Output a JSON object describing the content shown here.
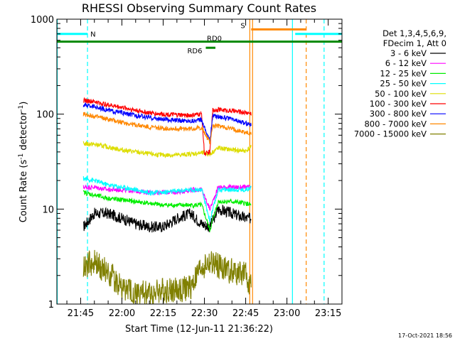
{
  "chart_data": {
    "type": "line",
    "title": "RHESSI Observing Summary Count Rates",
    "xlabel": "Start Time (12-Jun-11 21:36:22)",
    "ylabel": "Count Rate (s",
    "ylabel_sup": "-1",
    "ylabel_tail": " detector",
    "ylabel_sup2": "-1",
    "ylabel_close": ")",
    "y_scale": "log",
    "ylim": [
      1,
      1000
    ],
    "xlim": [
      "21:36:22",
      "23:20:00"
    ],
    "y_ticks": [
      {
        "value": 1,
        "label": "1"
      },
      {
        "value": 10,
        "label": "10"
      },
      {
        "value": 100,
        "label": "100"
      },
      {
        "value": 1000,
        "label": "1000"
      }
    ],
    "x_ticks": [
      {
        "min": 45,
        "label": "21:45"
      },
      {
        "min": 60,
        "label": "22:00"
      },
      {
        "min": 75,
        "label": "22:15"
      },
      {
        "min": 90,
        "label": "22:30"
      },
      {
        "min": 105,
        "label": "22:45"
      },
      {
        "min": 120,
        "label": "23:00"
      },
      {
        "min": 135,
        "label": "23:15"
      }
    ],
    "legend_header": [
      "Det 1,3,4,5,6,9,",
      "FDecim 1, Att 0"
    ],
    "legend_position": "right",
    "series": [
      {
        "name": "3 - 6 keV",
        "color": "#000000",
        "values": [
          {
            "x": "21:46",
            "y": 6.5
          },
          {
            "x": "21:50",
            "y": 9
          },
          {
            "x": "21:55",
            "y": 9
          },
          {
            "x": "22:00",
            "y": 8
          },
          {
            "x": "22:05",
            "y": 7
          },
          {
            "x": "22:10",
            "y": 6.5
          },
          {
            "x": "22:15",
            "y": 6.5
          },
          {
            "x": "22:20",
            "y": 8
          },
          {
            "x": "22:25",
            "y": 9
          },
          {
            "x": "22:29",
            "y": 7
          },
          {
            "x": "22:32",
            "y": 6.5
          },
          {
            "x": "22:35",
            "y": 10
          },
          {
            "x": "22:40",
            "y": 9
          },
          {
            "x": "22:45",
            "y": 8
          },
          {
            "x": "22:47",
            "y": 8
          }
        ]
      },
      {
        "name": "6 - 12 keV",
        "color": "#ff00ff",
        "values": [
          {
            "x": "21:46",
            "y": 17
          },
          {
            "x": "21:50",
            "y": 17
          },
          {
            "x": "21:55",
            "y": 16
          },
          {
            "x": "22:00",
            "y": 16
          },
          {
            "x": "22:05",
            "y": 15.5
          },
          {
            "x": "22:10",
            "y": 15
          },
          {
            "x": "22:15",
            "y": 15
          },
          {
            "x": "22:20",
            "y": 15
          },
          {
            "x": "22:25",
            "y": 16
          },
          {
            "x": "22:29",
            "y": 16
          },
          {
            "x": "22:32",
            "y": 10
          },
          {
            "x": "22:35",
            "y": 17
          },
          {
            "x": "22:40",
            "y": 17
          },
          {
            "x": "22:45",
            "y": 17
          },
          {
            "x": "22:47",
            "y": 17
          }
        ]
      },
      {
        "name": "12 - 25 keV",
        "color": "#00ee00",
        "values": [
          {
            "x": "21:46",
            "y": 15
          },
          {
            "x": "21:50",
            "y": 14
          },
          {
            "x": "21:55",
            "y": 13
          },
          {
            "x": "22:00",
            "y": 12.5
          },
          {
            "x": "22:05",
            "y": 12
          },
          {
            "x": "22:10",
            "y": 11.5
          },
          {
            "x": "22:15",
            "y": 11
          },
          {
            "x": "22:20",
            "y": 11
          },
          {
            "x": "22:25",
            "y": 11
          },
          {
            "x": "22:29",
            "y": 11
          },
          {
            "x": "22:32",
            "y": 6
          },
          {
            "x": "22:35",
            "y": 12
          },
          {
            "x": "22:40",
            "y": 12
          },
          {
            "x": "22:45",
            "y": 11.5
          },
          {
            "x": "22:47",
            "y": 11
          }
        ]
      },
      {
        "name": "25 - 50 keV",
        "color": "#00ffff",
        "values": [
          {
            "x": "21:46",
            "y": 21
          },
          {
            "x": "21:50",
            "y": 20
          },
          {
            "x": "21:55",
            "y": 18
          },
          {
            "x": "22:00",
            "y": 17
          },
          {
            "x": "22:05",
            "y": 16
          },
          {
            "x": "22:10",
            "y": 15
          },
          {
            "x": "22:15",
            "y": 15
          },
          {
            "x": "22:20",
            "y": 15.5
          },
          {
            "x": "22:25",
            "y": 16
          },
          {
            "x": "22:29",
            "y": 16
          },
          {
            "x": "22:32",
            "y": 7.5
          },
          {
            "x": "22:35",
            "y": 16
          },
          {
            "x": "22:40",
            "y": 16
          },
          {
            "x": "22:45",
            "y": 16
          },
          {
            "x": "22:47",
            "y": 17
          }
        ]
      },
      {
        "name": "50 - 100 keV",
        "color": "#dddd00",
        "values": [
          {
            "x": "21:46",
            "y": 49
          },
          {
            "x": "21:50",
            "y": 48
          },
          {
            "x": "21:55",
            "y": 45
          },
          {
            "x": "22:00",
            "y": 42
          },
          {
            "x": "22:05",
            "y": 40
          },
          {
            "x": "22:10",
            "y": 38
          },
          {
            "x": "22:15",
            "y": 37
          },
          {
            "x": "22:20",
            "y": 37
          },
          {
            "x": "22:25",
            "y": 38
          },
          {
            "x": "22:29",
            "y": 39
          },
          {
            "x": "22:32",
            "y": 38
          },
          {
            "x": "22:35",
            "y": 44
          },
          {
            "x": "22:40",
            "y": 42
          },
          {
            "x": "22:45",
            "y": 41
          },
          {
            "x": "22:47",
            "y": 45
          }
        ]
      },
      {
        "name": "100 - 300 keV",
        "color": "#ff0000",
        "values": [
          {
            "x": "21:46",
            "y": 140
          },
          {
            "x": "21:50",
            "y": 135
          },
          {
            "x": "21:55",
            "y": 125
          },
          {
            "x": "22:00",
            "y": 118
          },
          {
            "x": "22:05",
            "y": 110
          },
          {
            "x": "22:10",
            "y": 103
          },
          {
            "x": "22:15",
            "y": 100
          },
          {
            "x": "22:20",
            "y": 98
          },
          {
            "x": "22:25",
            "y": 97
          },
          {
            "x": "22:29",
            "y": 100
          },
          {
            "x": "22:30",
            "y": 38
          },
          {
            "x": "22:32",
            "y": 40
          },
          {
            "x": "22:33",
            "y": 110
          },
          {
            "x": "22:35",
            "y": 112
          },
          {
            "x": "22:40",
            "y": 108
          },
          {
            "x": "22:45",
            "y": 104
          },
          {
            "x": "22:47",
            "y": 102
          }
        ]
      },
      {
        "name": "300 - 800 keV",
        "color": "#0000ff",
        "values": [
          {
            "x": "21:46",
            "y": 125
          },
          {
            "x": "21:50",
            "y": 120
          },
          {
            "x": "21:55",
            "y": 110
          },
          {
            "x": "22:00",
            "y": 103
          },
          {
            "x": "22:05",
            "y": 97
          },
          {
            "x": "22:10",
            "y": 92
          },
          {
            "x": "22:15",
            "y": 88
          },
          {
            "x": "22:20",
            "y": 86
          },
          {
            "x": "22:25",
            "y": 85
          },
          {
            "x": "22:29",
            "y": 87
          },
          {
            "x": "22:32",
            "y": 52
          },
          {
            "x": "22:33",
            "y": 95
          },
          {
            "x": "22:35",
            "y": 95
          },
          {
            "x": "22:40",
            "y": 88
          },
          {
            "x": "22:45",
            "y": 80
          },
          {
            "x": "22:47",
            "y": 78
          }
        ]
      },
      {
        "name": "800 - 7000 keV",
        "color": "#ff8800",
        "values": [
          {
            "x": "21:46",
            "y": 100
          },
          {
            "x": "21:50",
            "y": 95
          },
          {
            "x": "21:55",
            "y": 88
          },
          {
            "x": "22:00",
            "y": 82
          },
          {
            "x": "22:05",
            "y": 77
          },
          {
            "x": "22:10",
            "y": 73
          },
          {
            "x": "22:15",
            "y": 71
          },
          {
            "x": "22:20",
            "y": 70
          },
          {
            "x": "22:25",
            "y": 70
          },
          {
            "x": "22:29",
            "y": 72
          },
          {
            "x": "22:32",
            "y": 50
          },
          {
            "x": "22:33",
            "y": 75
          },
          {
            "x": "22:35",
            "y": 75
          },
          {
            "x": "22:40",
            "y": 70
          },
          {
            "x": "22:45",
            "y": 64
          },
          {
            "x": "22:47",
            "y": 62
          }
        ]
      },
      {
        "name": "7000 - 15000 keV",
        "color": "#808000",
        "values": [
          {
            "x": "21:46",
            "y": 2.5
          },
          {
            "x": "21:50",
            "y": 2.7
          },
          {
            "x": "21:55",
            "y": 2.2
          },
          {
            "x": "22:00",
            "y": 1.5
          },
          {
            "x": "22:05",
            "y": 1.3
          },
          {
            "x": "22:10",
            "y": 1.3
          },
          {
            "x": "22:15",
            "y": 1.4
          },
          {
            "x": "22:20",
            "y": 1.4
          },
          {
            "x": "22:25",
            "y": 1.5
          },
          {
            "x": "22:29",
            "y": 2.5
          },
          {
            "x": "22:32",
            "y": 2.7
          },
          {
            "x": "22:35",
            "y": 2.5
          },
          {
            "x": "22:40",
            "y": 2.2
          },
          {
            "x": "22:45",
            "y": 2.0
          },
          {
            "x": "22:47",
            "y": 1.5
          }
        ]
      }
    ],
    "flags": [
      {
        "label": "N",
        "color": "#00ffff",
        "level": 700,
        "from": "21:36:22",
        "to": "21:47:30"
      },
      {
        "label": "N",
        "color": "#00ffff",
        "level": 700,
        "from": "23:03:00",
        "to": "23:20:00"
      },
      {
        "label": "S",
        "color": "#ff8800",
        "level": 780,
        "from": "22:47:00",
        "to": "23:07:00"
      },
      {
        "label": "RD0",
        "color": "#008800",
        "level": 580,
        "from": "21:36:22",
        "to": "23:20:00"
      },
      {
        "label": "RD6",
        "color": "#008800",
        "level": 500,
        "from": "22:30:30",
        "to": "22:34:00"
      }
    ],
    "vertical_markers": [
      {
        "x": "21:36:30",
        "color": "#00ffff",
        "style": "solid"
      },
      {
        "x": "21:47:30",
        "color": "#00ffff",
        "style": "dashed"
      },
      {
        "x": "22:46:30",
        "color": "#ff8800",
        "style": "solid"
      },
      {
        "x": "22:47:30",
        "color": "#ff8800",
        "style": "solid"
      },
      {
        "x": "23:02:00",
        "color": "#00ffff",
        "style": "solid"
      },
      {
        "x": "23:07:00",
        "color": "#ff8800",
        "style": "dashed"
      },
      {
        "x": "23:13:30",
        "color": "#00ffff",
        "style": "dashed"
      }
    ],
    "timestamp": "17-Oct-2021 18:56"
  }
}
